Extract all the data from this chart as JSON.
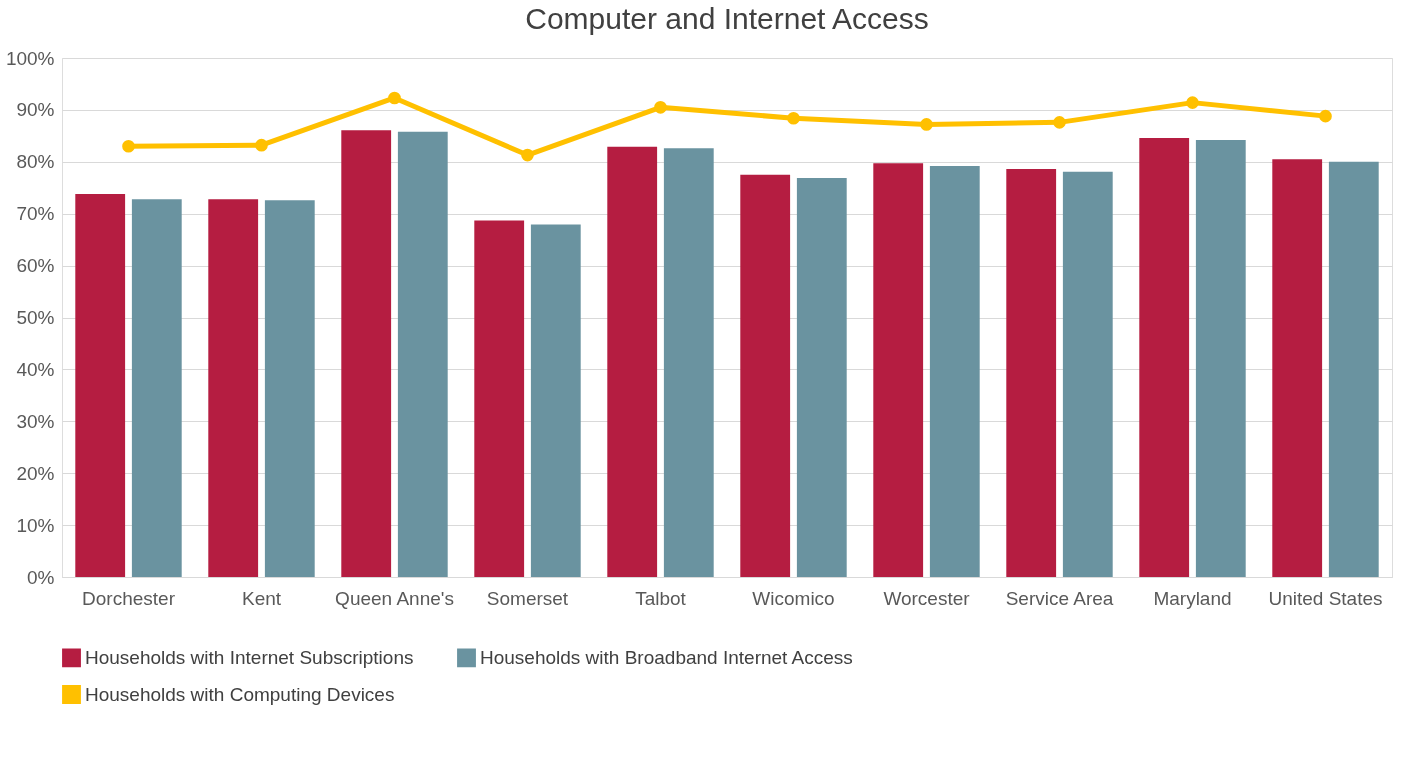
{
  "chart_data": {
    "type": "bar",
    "title": "Computer and Internet Access",
    "categories": [
      "Dorchester",
      "Kent",
      "Queen Anne's",
      "Somerset",
      "Talbot",
      "Wicomico",
      "Worcester",
      "Service Area",
      "Maryland",
      "United States"
    ],
    "series": [
      {
        "name": "Households with Internet Subscriptions",
        "color": "#b51d41",
        "values": [
          73.8,
          72.8,
          86.1,
          68.7,
          82.9,
          77.5,
          79.7,
          78.6,
          84.6,
          80.5
        ]
      },
      {
        "name": "Households with Broadband Internet Access",
        "color": "#6a93a0",
        "values": [
          72.8,
          72.6,
          85.8,
          67.9,
          82.6,
          76.9,
          79.2,
          78.1,
          84.2,
          80.0
        ]
      },
      {
        "name": "Households with Computing Devices",
        "color": "#ffc000",
        "type": "line",
        "marker": "circle",
        "line_style": "solid",
        "values": [
          83.0,
          83.2,
          92.3,
          81.3,
          90.5,
          88.4,
          87.2,
          87.6,
          91.4,
          88.8
        ]
      }
    ],
    "ylim": [
      0,
      100
    ],
    "yticks": [
      {
        "value": 0,
        "label": "0%"
      },
      {
        "value": 10,
        "label": "10%"
      },
      {
        "value": 20,
        "label": "20%"
      },
      {
        "value": 30,
        "label": "30%"
      },
      {
        "value": 40,
        "label": "40%"
      },
      {
        "value": 50,
        "label": "50%"
      },
      {
        "value": 60,
        "label": "60%"
      },
      {
        "value": 70,
        "label": "70%"
      },
      {
        "value": 80,
        "label": "80%"
      },
      {
        "value": 90,
        "label": "90%"
      },
      {
        "value": 100,
        "label": "100%"
      }
    ],
    "grid": "y",
    "legend": "bottom"
  }
}
